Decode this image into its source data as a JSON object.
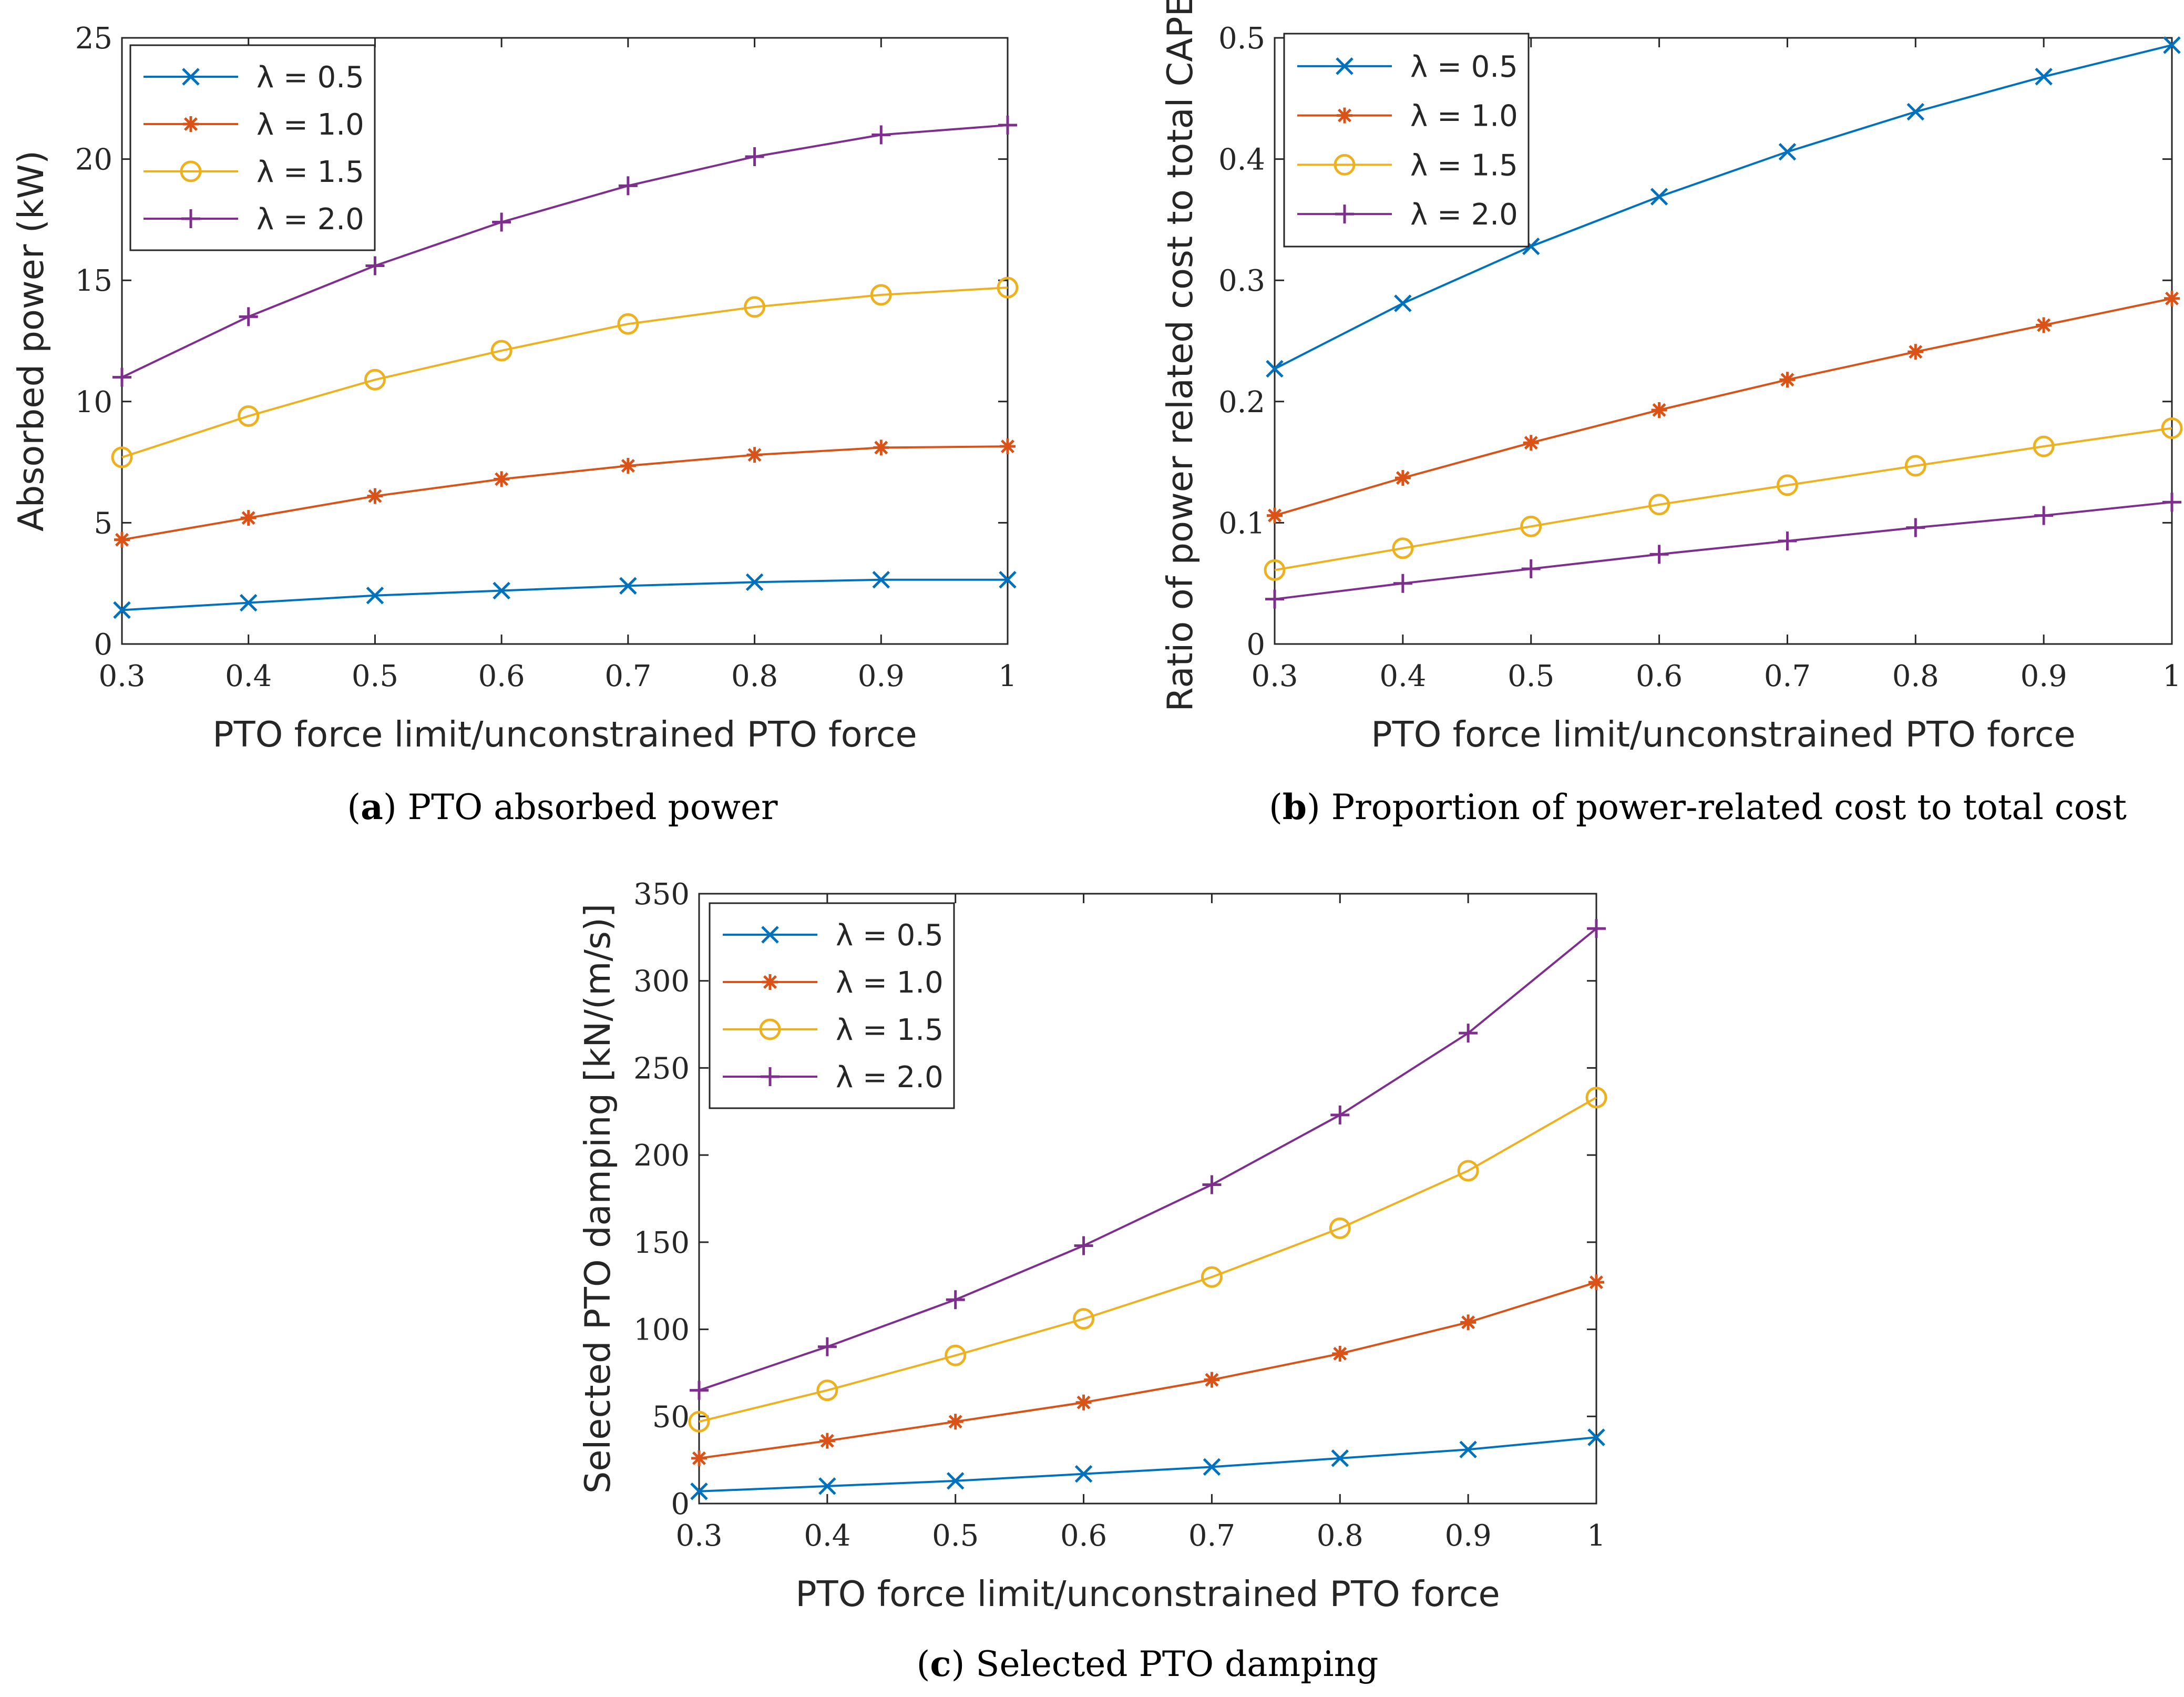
{
  "figure": {
    "colors": [
      "#0072BD",
      "#D95319",
      "#EDB120",
      "#7E2F8E"
    ],
    "legend_placement": "top-left"
  },
  "chart_data": [
    {
      "id": "a",
      "type": "line",
      "caption_label": "a",
      "caption_text": "PTO absorbed power",
      "xlabel": "PTO force limit/unconstrained PTO force",
      "ylabel": "Absorbed power (kW)",
      "xlim": [
        0.3,
        1
      ],
      "ylim": [
        0,
        25
      ],
      "xticks": [
        "0.3",
        "0.4",
        "0.5",
        "0.6",
        "0.7",
        "0.8",
        "0.9",
        "1"
      ],
      "yticks": [
        "0",
        "5",
        "10",
        "15",
        "20",
        "25"
      ],
      "x": [
        0.3,
        0.4,
        0.5,
        0.6,
        0.7,
        0.8,
        0.9,
        1.0
      ],
      "series": [
        {
          "name": "λ = 0.5",
          "marker": "x",
          "values": [
            1.4,
            1.7,
            2.0,
            2.2,
            2.4,
            2.55,
            2.65,
            2.65
          ]
        },
        {
          "name": "λ = 1.0",
          "marker": "star",
          "values": [
            4.3,
            5.2,
            6.1,
            6.8,
            7.35,
            7.8,
            8.1,
            8.15
          ]
        },
        {
          "name": "λ = 1.5",
          "marker": "circle",
          "values": [
            7.7,
            9.4,
            10.9,
            12.1,
            13.2,
            13.9,
            14.4,
            14.7
          ]
        },
        {
          "name": "λ = 2.0",
          "marker": "plus",
          "values": [
            11.0,
            13.5,
            15.6,
            17.4,
            18.9,
            20.1,
            21.0,
            21.4
          ]
        }
      ]
    },
    {
      "id": "b",
      "type": "line",
      "caption_label": "b",
      "caption_text": "Proportion of power-related cost to total cost",
      "xlabel": "PTO force limit/unconstrained PTO force",
      "ylabel": "Ratio of power related cost to total CAPEX",
      "xlim": [
        0.3,
        1
      ],
      "ylim": [
        0,
        0.5
      ],
      "xticks": [
        "0.3",
        "0.4",
        "0.5",
        "0.6",
        "0.7",
        "0.8",
        "0.9",
        "1"
      ],
      "yticks": [
        "0",
        "0.1",
        "0.2",
        "0.3",
        "0.4",
        "0.5"
      ],
      "x": [
        0.3,
        0.4,
        0.5,
        0.6,
        0.7,
        0.8,
        0.9,
        1.0
      ],
      "series": [
        {
          "name": "λ = 0.5",
          "marker": "x",
          "values": [
            0.227,
            0.281,
            0.328,
            0.369,
            0.406,
            0.439,
            0.468,
            0.494
          ]
        },
        {
          "name": "λ = 1.0",
          "marker": "star",
          "values": [
            0.106,
            0.137,
            0.166,
            0.193,
            0.218,
            0.241,
            0.263,
            0.285
          ]
        },
        {
          "name": "λ = 1.5",
          "marker": "circle",
          "values": [
            0.061,
            0.079,
            0.097,
            0.115,
            0.131,
            0.147,
            0.163,
            0.178
          ]
        },
        {
          "name": "λ = 2.0",
          "marker": "plus",
          "values": [
            0.037,
            0.05,
            0.062,
            0.074,
            0.085,
            0.096,
            0.106,
            0.117
          ]
        }
      ]
    },
    {
      "id": "c",
      "type": "line",
      "caption_label": "c",
      "caption_text": "Selected PTO damping",
      "xlabel": "PTO force limit/unconstrained PTO force",
      "ylabel": "Selected PTO damping [kN/(m/s)]",
      "xlim": [
        0.3,
        1
      ],
      "ylim": [
        0,
        350
      ],
      "xticks": [
        "0.3",
        "0.4",
        "0.5",
        "0.6",
        "0.7",
        "0.8",
        "0.9",
        "1"
      ],
      "yticks": [
        "0",
        "50",
        "100",
        "150",
        "200",
        "250",
        "300",
        "350"
      ],
      "x": [
        0.3,
        0.4,
        0.5,
        0.6,
        0.7,
        0.8,
        0.9,
        1.0
      ],
      "series": [
        {
          "name": "λ = 0.5",
          "marker": "x",
          "values": [
            7,
            10,
            13,
            17,
            21,
            26,
            31,
            38
          ]
        },
        {
          "name": "λ = 1.0",
          "marker": "star",
          "values": [
            26,
            36,
            47,
            58,
            71,
            86,
            104,
            127
          ]
        },
        {
          "name": "λ = 1.5",
          "marker": "circle",
          "values": [
            47,
            65,
            85,
            106,
            130,
            158,
            191,
            233
          ]
        },
        {
          "name": "λ = 2.0",
          "marker": "plus",
          "values": [
            65,
            90,
            117,
            148,
            183,
            223,
            270,
            330
          ]
        }
      ]
    }
  ]
}
